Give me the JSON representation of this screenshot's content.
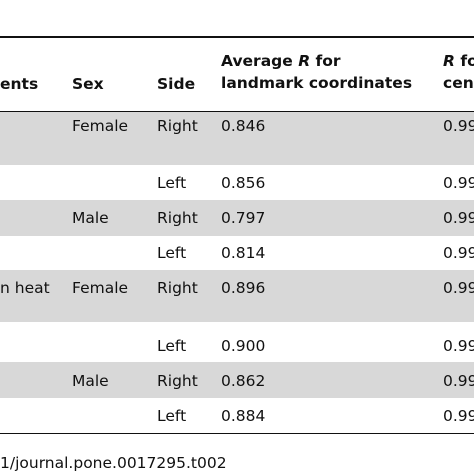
{
  "header": {
    "treatment": "ents",
    "sex": "Sex",
    "side": "Side",
    "avg_pre": "Average",
    "avg_r": "R",
    "avg_post": "for",
    "avg_line2": "landmark coordinates",
    "cs_r": "R",
    "cs_post": "fo",
    "cs_line2": "cen"
  },
  "rows": [
    {
      "sex": "Female",
      "side": "Right",
      "avg": "0.846",
      "cs": "0.99"
    },
    {
      "side": "Left",
      "avg": "0.856",
      "cs": "0.99"
    },
    {
      "sex": "Male",
      "side": "Right",
      "avg": "0.797",
      "cs": "0.99"
    },
    {
      "side": "Left",
      "avg": "0.814",
      "cs": "0.99"
    },
    {
      "treatment": "n heat",
      "sex": "Female",
      "side": "Right",
      "avg": "0.896",
      "cs": "0.99"
    },
    {
      "side": "Left",
      "avg": "0.900",
      "cs": "0.99"
    },
    {
      "sex": "Male",
      "side": "Right",
      "avg": "0.862",
      "cs": "0.99"
    },
    {
      "side": "Left",
      "avg": "0.884",
      "cs": "0.99"
    }
  ],
  "footer": "1/journal.pone.0017295.t002"
}
